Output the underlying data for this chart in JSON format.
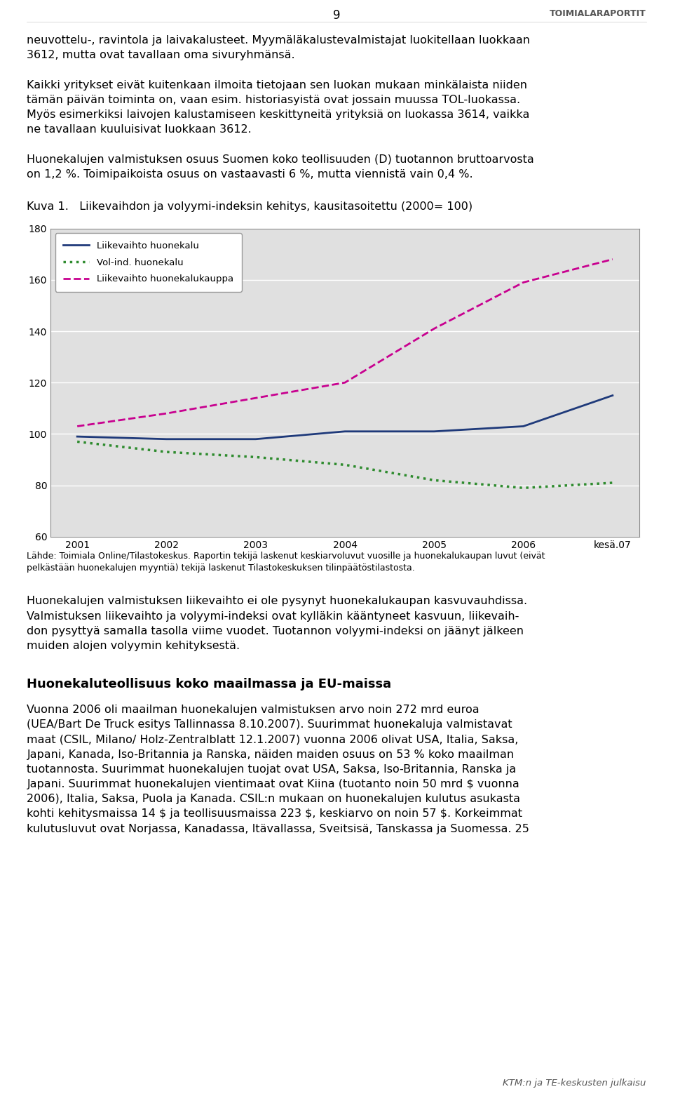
{
  "page_number": "9",
  "title_figure": "Kuva 1.",
  "title_text": "Liikevaihdon ja volyymi-indeksin kehitys, kausitasoitettu (2000= 100)",
  "x_labels": [
    "2001",
    "2002",
    "2003",
    "2004",
    "2005",
    "2006",
    "kesä.07"
  ],
  "x_values": [
    0,
    1,
    2,
    3,
    4,
    5,
    6
  ],
  "series": {
    "liikevaihto_huonekalu": {
      "label": "Liikevaihto huonekalu",
      "color": "#1f3a7a",
      "linestyle": "solid",
      "linewidth": 2.0,
      "values": [
        99,
        98,
        98,
        101,
        101,
        103,
        115
      ]
    },
    "vol_ind_huonekalu": {
      "label": "Vol-ind. huonekalu",
      "color": "#2e8b2e",
      "linestyle": "dotted",
      "linewidth": 2.5,
      "values": [
        97,
        93,
        91,
        88,
        82,
        79,
        81
      ]
    },
    "liikevaihto_huonekalukauppa": {
      "label": "Liikevaihto huonekalukauppa",
      "color": "#c8008f",
      "linestyle": "dashed",
      "linewidth": 2.0,
      "values": [
        103,
        108,
        114,
        120,
        141,
        159,
        168
      ]
    }
  },
  "ylim": [
    60,
    180
  ],
  "yticks": [
    60,
    80,
    100,
    120,
    140,
    160,
    180
  ],
  "plot_bg_color": "#e0e0e0",
  "grid_color": "#ffffff",
  "fig_bg_color": "#ffffff",
  "para0": "neuvottelu-, ravintola ja laivakalusteet. Myymäläkalustevalmistajat luokitellaan luokkaan 3612, mutta ovat tavallaan oma sivuryhmänsä.",
  "para1": "Kaikki yritykset eivät kuitenkaan ilmoita tietojaan sen luokan mukaan minkälaista niiden tämän päivän toiminta on, vaan esim. historiasyistä ovat jossain muussa TOL-luokassa. Myös esimerkiksi laivojen kalustamiseen keskittyneitä yrityksiä on luokassa 3614, vaikka ne tavallaan kuuluisivat luokkaan 3612.",
  "para2": "Huonekalujen valmistuksen osuus Suomen koko teollisuuden (D) tuotannon bruttoarvosta on 1,2 %. Toimipaikoista osuus on vastaavasti 6 %, mutta viennistä vain 0,4 %.",
  "caption_line1": "Lähde: Toimiala Online/Tilastokeskus. Raportin tekijä laskenut keskiarvoluvut vuosille ja huonekalukaupan luvut (eivät",
  "caption_line2": "pelkästään huonekalujen myyntiä) tekijä laskenut Tilastokeskuksen tilinpäätöstilastosta.",
  "post_text1_lines": [
    "Huonekalujen valmistuksen liikevaihto ei ole pysynyt huonekalukaupan kasvuvauhdissa.",
    "Valmistuksen liikevaihto ja volyymi-indeksi ovat kylläkin kääntyneet kasvuun, liikevaih-",
    "don pysyttyä samalla tasolla viime vuodet. Tuotannon volyymi-indeksi on jäänyt jälkeen",
    "muiden alojen volyymin kehityksestä."
  ],
  "post_header": "Huonekaluteollisuus koko maailmassa ja EU-maissa",
  "post_text2_lines": [
    "Vuonna 2006 oli maailman huonekalujen valmistuksen arvo noin 272 mrd euroa",
    "(UEA/Bart De Truck esitys Tallinnassa 8.10.2007). Suurimmat huonekaluja valmistavat",
    "maat (CSIL, Milano/ Holz-Zentralblatt 12.1.2007) vuonna 2006 olivat USA, Italia, Saksa,",
    "Japani, Kanada, Iso-Britannia ja Ranska, näiden maiden osuus on 53 % koko maailman",
    "tuotannosta. Suurimmat huonekalujen tuojat ovat USA, Saksa, Iso-Britannia, Ranska ja",
    "Japani. Suurimmat huonekalujen vientimaat ovat Kiina (tuotanto noin 50 mrd $ vuonna",
    "2006), Italia, Saksa, Puola ja Kanada. CSIL:n mukaan on huonekalujen kulutus asukasta",
    "kohti kehitysmaissa 14 $ ja teollisuusmaissa 223 $, keskiarvo on noin 57 $. Korkeimmat",
    "kulutusluvut ovat Norjassa, Kanadassa, Itävallassa, Sveitsisä, Tanskassa ja Suomessa. 25"
  ],
  "footer_text": "KTM:n ja TE-keskusten julkaisu",
  "logo_text": "TOIMIALARAPORTIT",
  "text_fontsize": 11.5,
  "caption_fontsize": 9.0,
  "header_fontsize": 13.0,
  "footer_fontsize": 9.5
}
